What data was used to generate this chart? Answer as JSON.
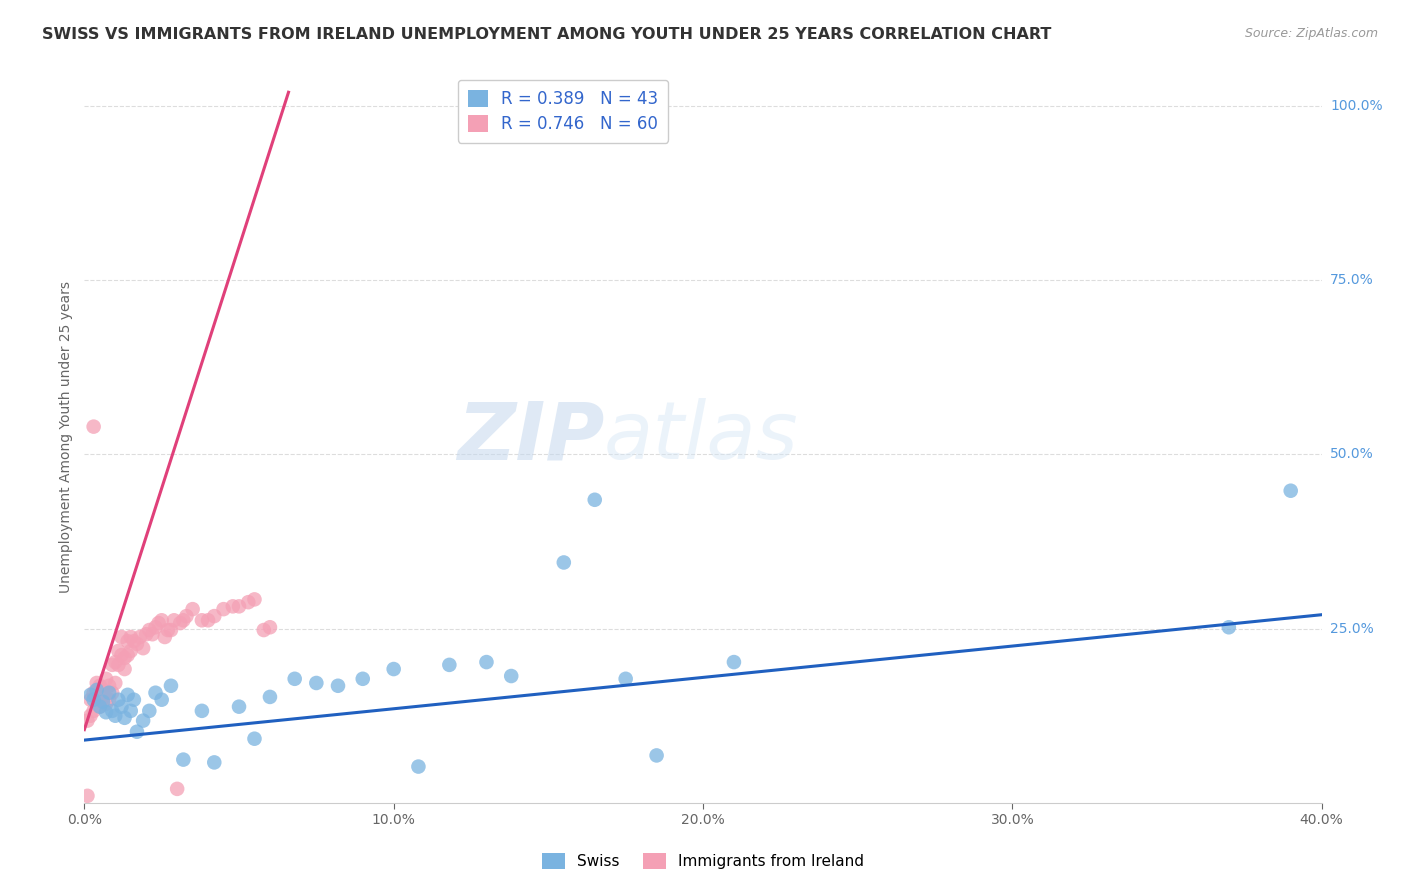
{
  "title": "SWISS VS IMMIGRANTS FROM IRELAND UNEMPLOYMENT AMONG YOUTH UNDER 25 YEARS CORRELATION CHART",
  "source": "Source: ZipAtlas.com",
  "ylabel": "Unemployment Among Youth under 25 years",
  "xlim": [
    0.0,
    0.4
  ],
  "ylim": [
    0.0,
    1.05
  ],
  "xticks": [
    0.0,
    0.1,
    0.2,
    0.3,
    0.4
  ],
  "xtick_labels": [
    "0.0%",
    "10.0%",
    "20.0%",
    "30.0%",
    "40.0%"
  ],
  "yticks_right": [
    0.25,
    0.5,
    0.75,
    1.0
  ],
  "ytick_labels_right": [
    "25.0%",
    "50.0%",
    "75.0%",
    "100.0%"
  ],
  "swiss_R": 0.389,
  "swiss_N": 43,
  "ireland_R": 0.746,
  "ireland_N": 60,
  "swiss_color": "#7ab3e0",
  "ireland_color": "#f4a0b5",
  "swiss_line_color": "#2060c0",
  "ireland_line_color": "#e0407a",
  "watermark_zip": "ZIP",
  "watermark_atlas": "atlas",
  "swiss_scatter_x": [
    0.002,
    0.003,
    0.004,
    0.005,
    0.006,
    0.007,
    0.008,
    0.009,
    0.01,
    0.011,
    0.012,
    0.013,
    0.014,
    0.015,
    0.016,
    0.017,
    0.019,
    0.021,
    0.023,
    0.025,
    0.028,
    0.032,
    0.038,
    0.042,
    0.05,
    0.055,
    0.06,
    0.068,
    0.075,
    0.082,
    0.09,
    0.1,
    0.108,
    0.118,
    0.13,
    0.138,
    0.155,
    0.165,
    0.175,
    0.185,
    0.21,
    0.37,
    0.39
  ],
  "swiss_scatter_y": [
    0.155,
    0.148,
    0.162,
    0.138,
    0.145,
    0.13,
    0.158,
    0.132,
    0.125,
    0.148,
    0.138,
    0.122,
    0.155,
    0.132,
    0.148,
    0.102,
    0.118,
    0.132,
    0.158,
    0.148,
    0.168,
    0.062,
    0.132,
    0.058,
    0.138,
    0.092,
    0.152,
    0.178,
    0.172,
    0.168,
    0.178,
    0.192,
    0.052,
    0.198,
    0.202,
    0.182,
    0.345,
    0.435,
    0.178,
    0.068,
    0.202,
    0.252,
    0.448
  ],
  "ireland_scatter_x": [
    0.001,
    0.002,
    0.002,
    0.003,
    0.003,
    0.004,
    0.004,
    0.005,
    0.005,
    0.006,
    0.006,
    0.007,
    0.007,
    0.008,
    0.008,
    0.009,
    0.009,
    0.01,
    0.01,
    0.011,
    0.011,
    0.012,
    0.012,
    0.013,
    0.013,
    0.014,
    0.014,
    0.015,
    0.015,
    0.016,
    0.017,
    0.018,
    0.019,
    0.02,
    0.021,
    0.022,
    0.023,
    0.024,
    0.025,
    0.026,
    0.027,
    0.028,
    0.029,
    0.03,
    0.031,
    0.032,
    0.033,
    0.035,
    0.038,
    0.04,
    0.042,
    0.045,
    0.048,
    0.05,
    0.053,
    0.055,
    0.058,
    0.06,
    0.003,
    0.001
  ],
  "ireland_scatter_y": [
    0.118,
    0.125,
    0.148,
    0.132,
    0.158,
    0.172,
    0.148,
    0.138,
    0.168,
    0.152,
    0.162,
    0.142,
    0.178,
    0.148,
    0.168,
    0.198,
    0.158,
    0.202,
    0.172,
    0.198,
    0.218,
    0.238,
    0.212,
    0.192,
    0.208,
    0.212,
    0.232,
    0.238,
    0.218,
    0.232,
    0.228,
    0.238,
    0.222,
    0.242,
    0.248,
    0.242,
    0.252,
    0.258,
    0.262,
    0.238,
    0.248,
    0.248,
    0.262,
    0.02,
    0.258,
    0.262,
    0.268,
    0.278,
    0.262,
    0.262,
    0.268,
    0.278,
    0.282,
    0.282,
    0.288,
    0.292,
    0.248,
    0.252,
    0.54,
    0.01
  ],
  "swiss_trendline_x": [
    0.0,
    0.4
  ],
  "swiss_trendline_y": [
    0.09,
    0.27
  ],
  "ireland_trendline_x": [
    0.0,
    0.066
  ],
  "ireland_trendline_y": [
    0.105,
    1.02
  ],
  "background_color": "#ffffff",
  "grid_color": "#dddddd",
  "title_fontsize": 11.5,
  "label_fontsize": 10,
  "tick_fontsize": 10,
  "legend_fontsize": 12
}
